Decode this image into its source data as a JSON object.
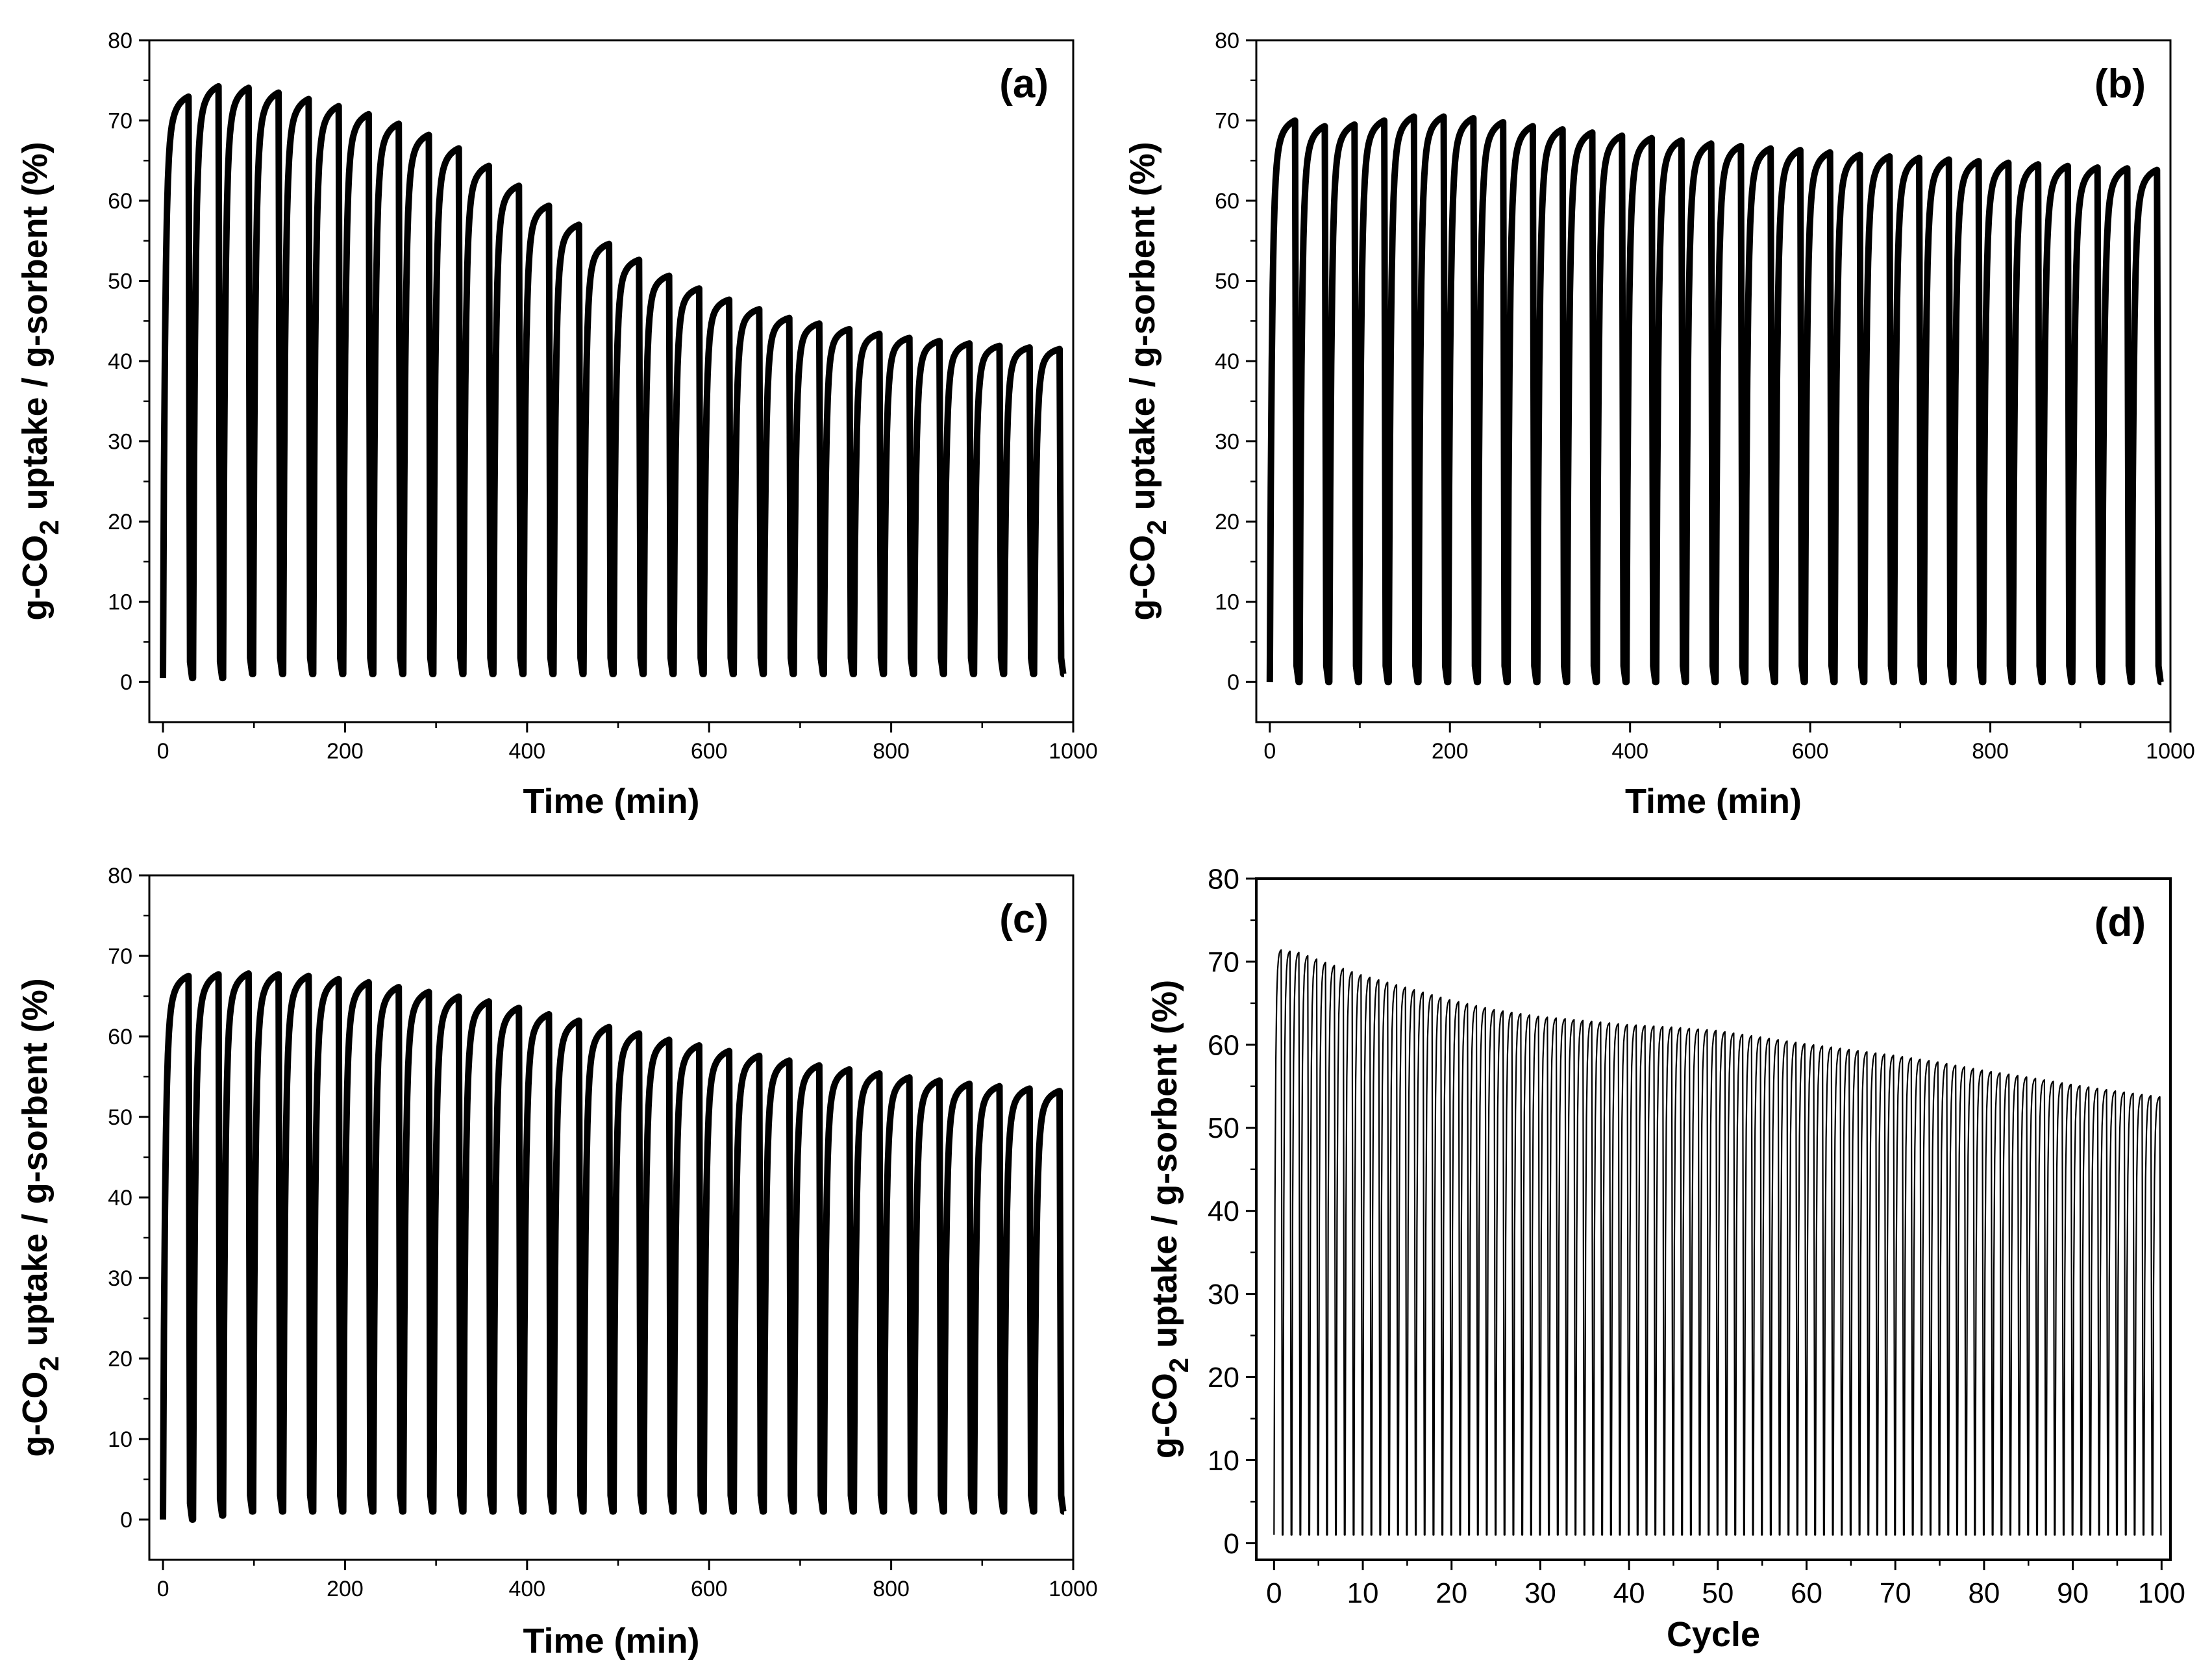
{
  "figure": {
    "panels": [
      {
        "id": "a",
        "label": "(a)",
        "ylabel_prefix": "g-CO",
        "ylabel_sub": "2",
        "ylabel_suffix": " uptake / g-sorbent (%)",
        "xlabel": "Time (min)"
      },
      {
        "id": "b",
        "label": "(b)",
        "ylabel_prefix": "g-CO",
        "ylabel_sub": "2",
        "ylabel_suffix": " uptake / g-sorbent (%)",
        "xlabel": "Time (min)"
      },
      {
        "id": "c",
        "label": "(c)",
        "ylabel_prefix": "g-CO",
        "ylabel_sub": "2",
        "ylabel_suffix": " uptake / g-sorbent (%)",
        "xlabel": "Time (min)"
      },
      {
        "id": "d",
        "label": "(d)",
        "ylabel_prefix": "g-CO",
        "ylabel_sub": "2",
        "ylabel_suffix": " uptake / g-sorbent (%)",
        "xlabel": "Cycle"
      }
    ]
  },
  "chart_data": [
    {
      "panel": "(a)",
      "type": "line",
      "xlabel": "Time (min)",
      "ylabel": "g-CO2 uptake / g-sorbent (%)",
      "xlim": [
        -15,
        1000
      ],
      "ylim": [
        -5,
        80
      ],
      "xticks": [
        0,
        200,
        400,
        600,
        800,
        1000
      ],
      "yticks": [
        0,
        10,
        20,
        30,
        40,
        50,
        60,
        70,
        80
      ],
      "grid": false,
      "line_color": "#000000",
      "cycle_start_min": [
        0,
        33,
        66,
        99,
        132,
        165,
        198,
        231,
        264,
        297,
        330,
        363,
        396,
        429,
        462,
        495,
        528,
        561,
        594,
        627,
        660,
        693,
        726,
        759,
        792,
        825,
        858,
        891,
        924,
        957
      ],
      "cycle_duration_min": 33,
      "cycle_peak_percent": [
        73.5,
        74.8,
        74.6,
        74.0,
        73.2,
        72.3,
        71.3,
        70.1,
        68.7,
        67.0,
        64.8,
        62.3,
        59.8,
        57.4,
        55.0,
        53.0,
        51.0,
        49.4,
        48.0,
        46.8,
        45.7,
        45.0,
        44.3,
        43.7,
        43.2,
        42.8,
        42.5,
        42.2,
        42.0,
        41.8
      ],
      "cycle_min_percent": [
        0.5,
        0.5,
        1.0,
        1.0,
        1.0,
        1.0,
        1.0,
        1.0,
        1.0,
        1.0,
        1.0,
        1.0,
        1.0,
        1.0,
        1.0,
        1.0,
        1.0,
        1.0,
        1.0,
        1.0,
        1.0,
        1.0,
        1.0,
        1.0,
        1.0,
        1.0,
        1.0,
        1.0,
        1.0,
        1.0
      ]
    },
    {
      "panel": "(b)",
      "type": "line",
      "xlabel": "Time (min)",
      "ylabel": "g-CO2 uptake / g-sorbent (%)",
      "xlim": [
        -15,
        1000
      ],
      "ylim": [
        -5,
        80
      ],
      "xticks": [
        0,
        200,
        400,
        600,
        800,
        1000
      ],
      "yticks": [
        0,
        10,
        20,
        30,
        40,
        50,
        60,
        70,
        80
      ],
      "grid": false,
      "line_color": "#000000",
      "cycle_start_min": [
        0,
        33,
        66,
        99,
        132,
        165,
        198,
        231,
        264,
        297,
        330,
        363,
        396,
        429,
        462,
        495,
        528,
        561,
        594,
        627,
        660,
        693,
        726,
        759,
        792,
        825,
        858,
        891,
        924,
        957
      ],
      "cycle_duration_min": 33,
      "cycle_peak_percent": [
        70.5,
        69.8,
        70.0,
        70.5,
        71.0,
        71.0,
        70.8,
        70.3,
        69.8,
        69.4,
        69.0,
        68.6,
        68.3,
        68.0,
        67.6,
        67.3,
        67.0,
        66.8,
        66.5,
        66.2,
        66.0,
        65.8,
        65.6,
        65.4,
        65.2,
        65.0,
        64.8,
        64.6,
        64.5,
        64.3
      ],
      "cycle_min_percent": [
        0.0,
        0.0,
        0.0,
        0.0,
        0.0,
        0.0,
        0.0,
        0.0,
        0.0,
        0.0,
        0.0,
        0.0,
        0.0,
        0.0,
        0.0,
        0.0,
        0.0,
        0.0,
        0.0,
        0.0,
        0.0,
        0.0,
        0.0,
        0.0,
        0.0,
        0.0,
        0.0,
        0.0,
        0.0,
        0.0
      ]
    },
    {
      "panel": "(c)",
      "type": "line",
      "xlabel": "Time (min)",
      "ylabel": "g-CO2 uptake / g-sorbent (%)",
      "xlim": [
        -15,
        1000
      ],
      "ylim": [
        -5,
        80
      ],
      "xticks": [
        0,
        200,
        400,
        600,
        800,
        1000
      ],
      "yticks": [
        0,
        10,
        20,
        30,
        40,
        50,
        60,
        70,
        80
      ],
      "grid": false,
      "line_color": "#000000",
      "cycle_start_min": [
        0,
        33,
        66,
        99,
        132,
        165,
        198,
        231,
        264,
        297,
        330,
        363,
        396,
        429,
        462,
        495,
        528,
        561,
        594,
        627,
        660,
        693,
        726,
        759,
        792,
        825,
        858,
        891,
        924,
        957
      ],
      "cycle_duration_min": 33,
      "cycle_peak_percent": [
        68.0,
        68.2,
        68.3,
        68.2,
        68.0,
        67.6,
        67.2,
        66.6,
        66.0,
        65.4,
        64.8,
        64.0,
        63.2,
        62.4,
        61.6,
        60.8,
        60.0,
        59.3,
        58.6,
        58.0,
        57.4,
        56.8,
        56.3,
        55.8,
        55.3,
        54.9,
        54.5,
        54.2,
        53.9,
        53.6
      ],
      "cycle_min_percent": [
        0.0,
        0.5,
        1.0,
        1.0,
        1.0,
        1.0,
        1.0,
        1.0,
        1.0,
        1.0,
        1.0,
        1.0,
        1.0,
        1.0,
        1.0,
        1.0,
        1.0,
        1.0,
        1.0,
        1.0,
        1.0,
        1.0,
        1.0,
        1.0,
        1.0,
        1.0,
        1.0,
        1.0,
        1.0,
        1.0
      ]
    },
    {
      "panel": "(d)",
      "type": "line",
      "xlabel": "Cycle",
      "ylabel": "g-CO2 uptake / g-sorbent (%)",
      "xlim": [
        -2,
        101
      ],
      "ylim": [
        -2,
        80
      ],
      "xticks": [
        0,
        10,
        20,
        30,
        40,
        50,
        60,
        70,
        80,
        90,
        100
      ],
      "yticks": [
        0,
        10,
        20,
        30,
        40,
        50,
        60,
        70,
        80
      ],
      "grid": false,
      "line_color": "#000000",
      "cycles": 100,
      "peak_profile": {
        "cycle": [
          1,
          3,
          6,
          10,
          15,
          20,
          25,
          30,
          35,
          40,
          45,
          50,
          55,
          60,
          65,
          70,
          75,
          80,
          85,
          90,
          95,
          100
        ],
        "peak_percent": [
          71.5,
          71.2,
          70.0,
          68.5,
          67.0,
          65.5,
          64.3,
          63.5,
          63.0,
          62.5,
          62.2,
          61.8,
          61.0,
          60.2,
          59.5,
          58.8,
          58.0,
          57.0,
          56.2,
          55.3,
          54.5,
          53.8
        ]
      },
      "cycle_min_percent": 1.0
    }
  ]
}
